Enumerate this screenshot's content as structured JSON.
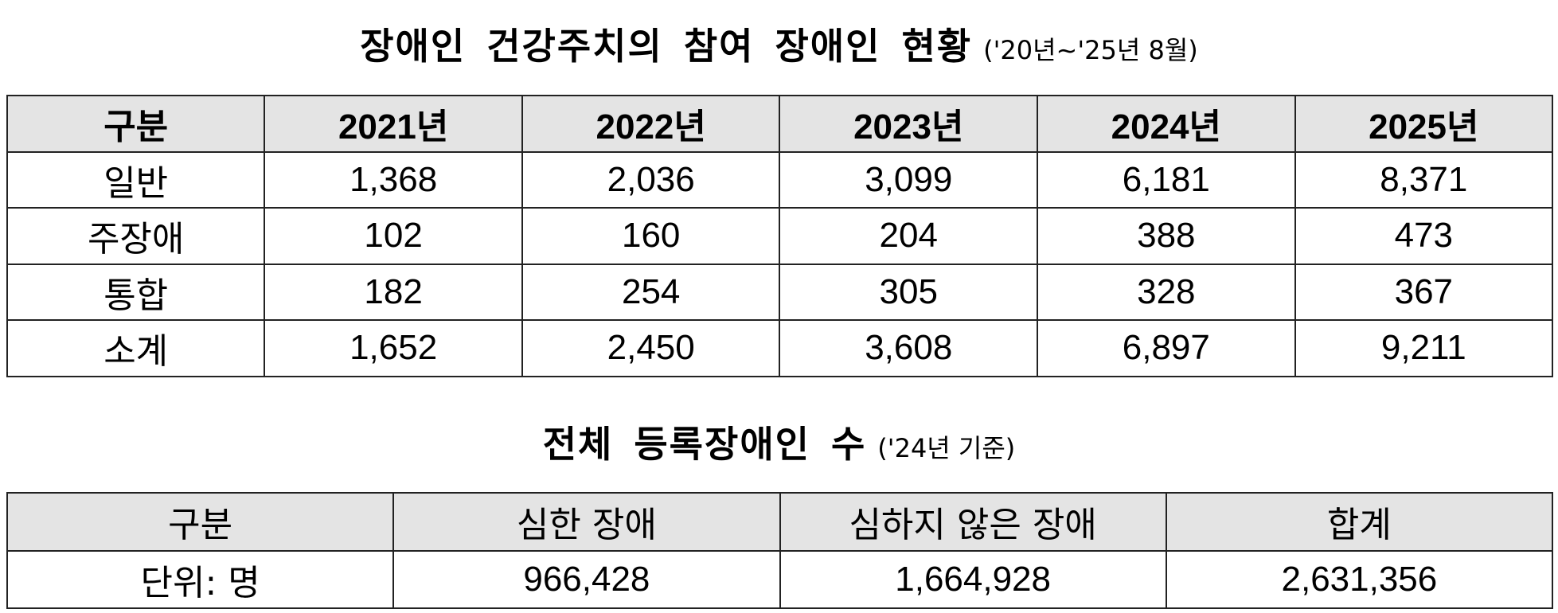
{
  "section1": {
    "title": "장애인 건강주치의 참여 장애인 현황",
    "subtitle": "('20년~'25년 8월)",
    "table": {
      "header": [
        "구분",
        "2021년",
        "2022년",
        "2023년",
        "2024년",
        "2025년"
      ],
      "rows": [
        {
          "label": "일반",
          "values": [
            "1,368",
            "2,036",
            "3,099",
            "6,181",
            "8,371"
          ]
        },
        {
          "label": "주장애",
          "values": [
            "102",
            "160",
            "204",
            "388",
            "473"
          ]
        },
        {
          "label": "통합",
          "values": [
            "182",
            "254",
            "305",
            "328",
            "367"
          ]
        },
        {
          "label": "소계",
          "values": [
            "1,652",
            "2,450",
            "3,608",
            "6,897",
            "9,211"
          ]
        }
      ]
    }
  },
  "section2": {
    "title": "전체 등록장애인 수",
    "subtitle": "('24년 기준)",
    "table": {
      "header": [
        "구분",
        "심한 장애",
        "심하지 않은 장애",
        "합계"
      ],
      "row": {
        "label": "단위: 명",
        "values": [
          "966,428",
          "1,664,928",
          "2,631,356"
        ]
      }
    }
  },
  "colors": {
    "header_background": "#e4e4e4",
    "border": "#222222",
    "text": "#000000"
  }
}
